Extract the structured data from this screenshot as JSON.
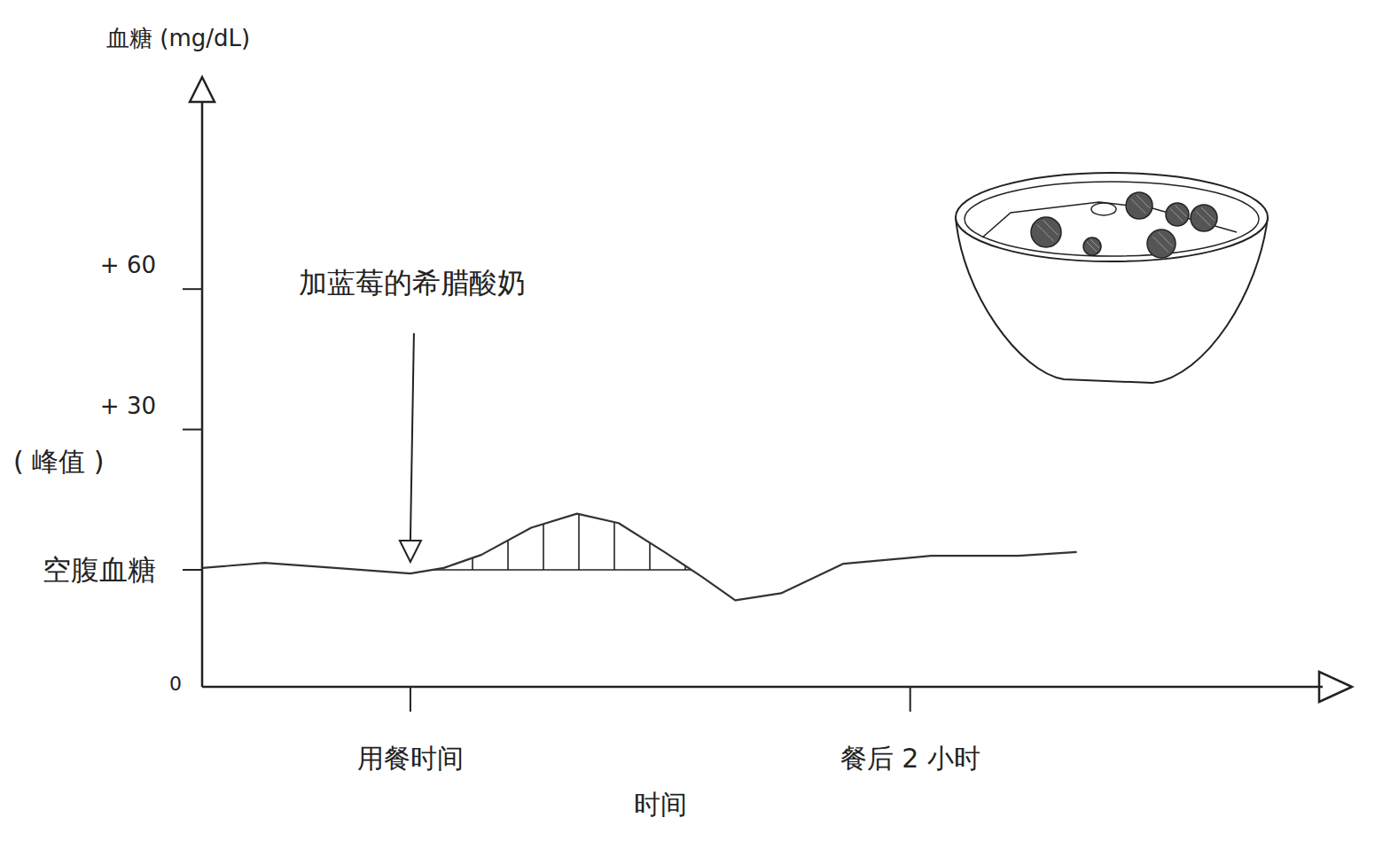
{
  "chart_data": {
    "type": "line",
    "y_label": "血糖 (mg/dL)",
    "x_label": "时间",
    "annotation": "加蓝莓的希腊酸奶",
    "peak_label": "( 峰值 )",
    "y_origin_label": "0",
    "x": [
      -50,
      -35,
      -18,
      0,
      8,
      17,
      29,
      40,
      50,
      61,
      70,
      78,
      89,
      104,
      125,
      146,
      160
    ],
    "values": [
      0.4,
      1.5,
      0.4,
      -0.8,
      0.4,
      3.2,
      9,
      12,
      10,
      3.8,
      -1.5,
      -6.5,
      -5,
      1.3,
      3,
      3,
      3.8
    ],
    "color": "#333333",
    "xlim": [
      -50,
      225
    ],
    "xticks": [
      {
        "value": 0,
        "label": "用餐时间"
      },
      {
        "value": 120,
        "label": "餐后 2 小时"
      }
    ],
    "ylim": [
      -25,
      100
    ],
    "yticks": [
      {
        "value": 0,
        "label": "空腹血糖"
      },
      {
        "value": 30,
        "label": "+ 30"
      },
      {
        "value": 60,
        "label": "+ 60"
      }
    ]
  }
}
